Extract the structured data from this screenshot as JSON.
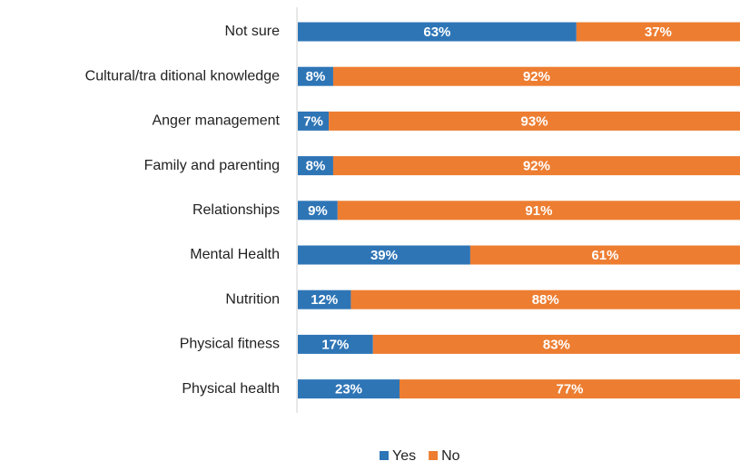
{
  "chart_data": {
    "type": "stacked_bar_horizontal",
    "categories": [
      "Not sure",
      "Cultural/tra ditional knowledge",
      "Anger management",
      "Family and parenting",
      "Relationships",
      "Mental Health",
      "Nutrition",
      "Physical fitness",
      "Physical health"
    ],
    "series": [
      {
        "name": "Yes",
        "color": "#2e75b6",
        "values": [
          63,
          8,
          7,
          8,
          9,
          39,
          12,
          17,
          23
        ],
        "value_labels": [
          "63%",
          "8%",
          "7%",
          "8%",
          "9%",
          "39%",
          "12%",
          "17%",
          "23%"
        ]
      },
      {
        "name": "No",
        "color": "#ed7d31",
        "values": [
          37,
          92,
          93,
          92,
          91,
          61,
          88,
          83,
          77
        ],
        "value_labels": [
          "37%",
          "92%",
          "93%",
          "92%",
          "91%",
          "61%",
          "88%",
          "83%",
          "77%"
        ]
      }
    ],
    "legend": "bottom"
  }
}
